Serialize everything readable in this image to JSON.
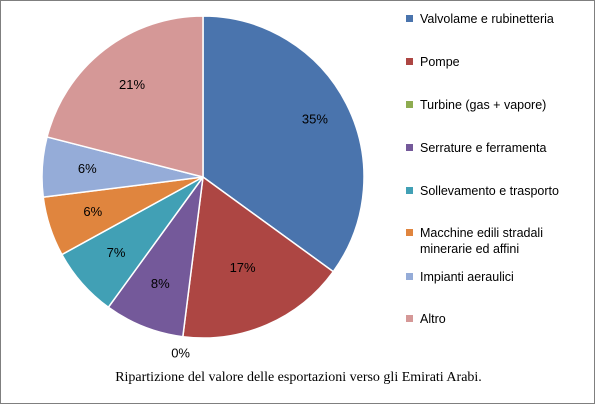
{
  "chart_data": {
    "type": "pie",
    "categories": [
      "Valvolame e rubinetteria",
      "Pompe",
      "Turbine (gas + vapore)",
      "Serrature e ferramenta",
      "Sollevamento e trasporto",
      "Macchine edili stradali minerarie ed affini",
      "Impianti aeraulici",
      "Altro"
    ],
    "values": [
      35,
      17,
      0,
      8,
      7,
      6,
      6,
      21
    ],
    "labels": [
      "35%",
      "17%",
      "0%",
      "8%",
      "7%",
      "6%",
      "6%",
      "21%"
    ],
    "colors": [
      "#4a74ad",
      "#ad4643",
      "#8eac50",
      "#74599a",
      "#41a0b5",
      "#e0853e",
      "#95acd8",
      "#d59897"
    ],
    "legend_position": "right",
    "caption": "Ripartizione del valore delle esportazioni verso gli Emirati Arabi."
  }
}
